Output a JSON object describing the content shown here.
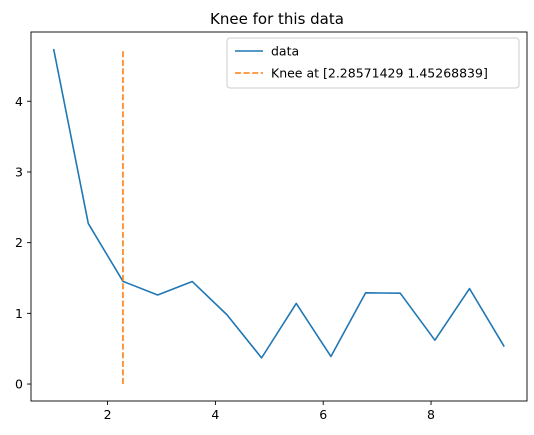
{
  "chart_data": {
    "type": "line",
    "title": "Knee for this data",
    "xlabel": "",
    "ylabel": "",
    "xlim": [
      0.58,
      9.78
    ],
    "ylim": [
      -0.24,
      4.98
    ],
    "xticks": [
      2,
      4,
      6,
      8
    ],
    "yticks": [
      0,
      1,
      2,
      3,
      4
    ],
    "grid": false,
    "legend_placement": "upper right",
    "series": [
      {
        "name": "data",
        "style": "solid",
        "color": "#1f77b4",
        "x": [
          1.0,
          1.64285714,
          2.28571429,
          2.92857143,
          3.57142857,
          4.21428571,
          4.85714286,
          5.5,
          6.14285714,
          6.78571429,
          7.42857143,
          8.07142857,
          8.71428571,
          9.35714286
        ],
        "y": [
          4.74,
          2.27,
          1.45268839,
          1.26,
          1.45,
          0.98,
          0.37,
          1.14,
          0.39,
          1.29,
          1.285,
          0.62,
          1.35,
          0.53
        ]
      },
      {
        "name": "Knee at [2.28571429 1.45268839]",
        "style": "dashed",
        "color": "#ff7f0e",
        "x": [
          2.28571429,
          2.28571429
        ],
        "y": [
          0,
          4.74
        ]
      }
    ]
  }
}
